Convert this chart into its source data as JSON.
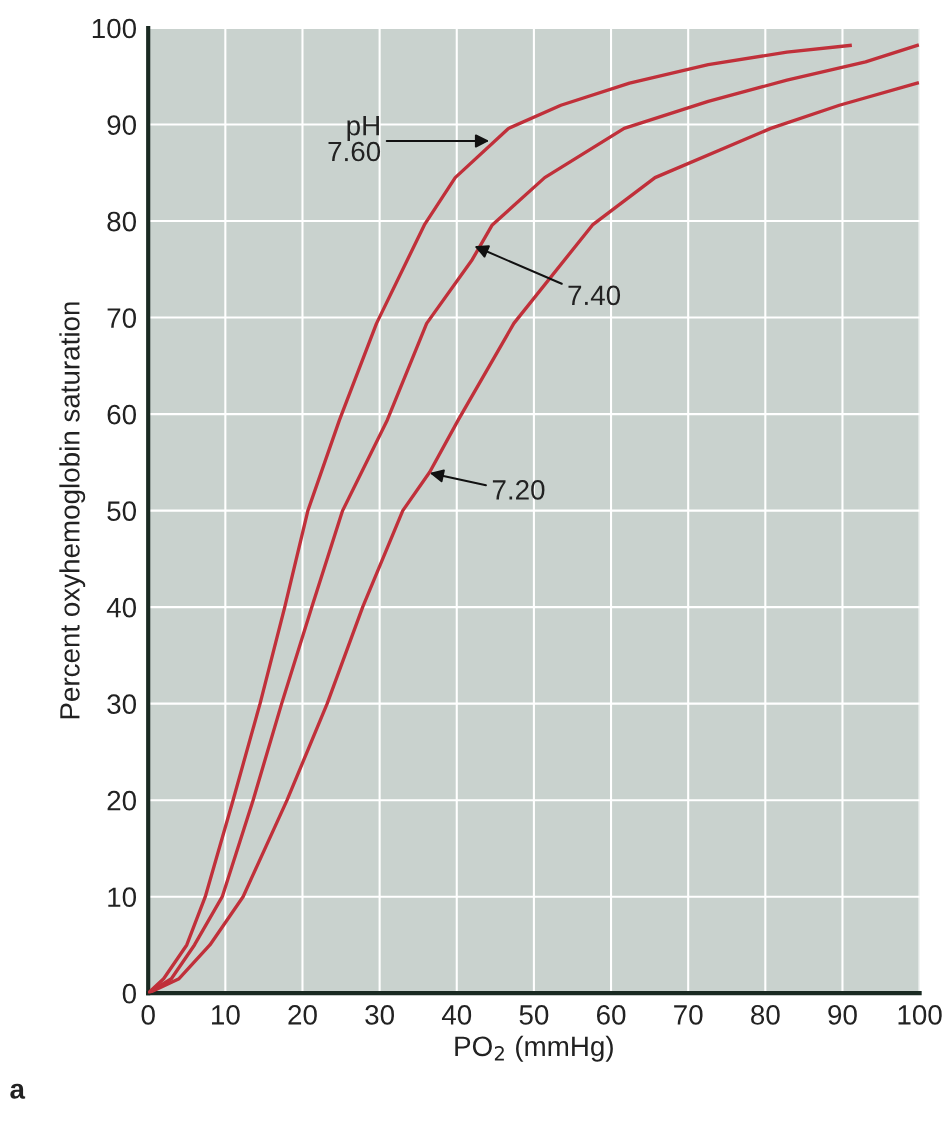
{
  "chart_data": {
    "type": "line",
    "xlabel": "PO$_{2}$ (mmHg)",
    "ylabel": "Percent oxyhemoglobin saturation",
    "xlim": [
      0,
      100
    ],
    "ylim": [
      0,
      100
    ],
    "xticks": [
      0,
      10,
      20,
      30,
      40,
      50,
      60,
      70,
      80,
      90,
      100
    ],
    "yticks": [
      0,
      10,
      20,
      30,
      40,
      50,
      60,
      70,
      80,
      90,
      100
    ],
    "grid": true,
    "line_style": "solid",
    "marker": "none",
    "series": [
      {
        "color": "#c0303a",
        "x": [
          0,
          2,
          5,
          7.4,
          11,
          14.5,
          17.7,
          20.7,
          24.8,
          29.6,
          35.8,
          39.8,
          46.7,
          53.5,
          62.4,
          72.6,
          82.8,
          91
        ],
        "values": [
          0,
          1.5,
          5,
          10,
          20,
          30,
          40,
          50,
          59.4,
          69.4,
          79.6,
          84.5,
          89.6,
          92,
          94.3,
          96.2,
          97.5,
          98.2
        ]
      },
      {
        "color": "#c0303a",
        "x": [
          0,
          3,
          6,
          9.6,
          13.6,
          17.3,
          21.2,
          25.2,
          31,
          36.1,
          42,
          44.6,
          51.4,
          61.7,
          72.6,
          82.8,
          93,
          99.7
        ],
        "values": [
          0,
          1.5,
          5,
          10,
          20,
          30,
          40,
          50,
          59.4,
          69.4,
          76,
          79.6,
          84.5,
          89.6,
          92.4,
          94.6,
          96.5,
          98.2
        ]
      },
      {
        "color": "#c0303a",
        "x": [
          0,
          4,
          8,
          12.3,
          18,
          23.2,
          27.8,
          33,
          36.5,
          40.2,
          47.4,
          57.6,
          65.7,
          80.7,
          89.6,
          99.7
        ],
        "values": [
          0,
          1.5,
          5,
          10,
          20,
          30,
          40,
          50,
          54,
          59.4,
          69.4,
          79.6,
          84.5,
          89.6,
          92,
          94.3
        ]
      }
    ],
    "annotations": [
      {
        "text": "pH\n7.60",
        "x": 44.2,
        "y": 88.3
      },
      {
        "text": "7.40",
        "x": 42.3,
        "y": 77.4
      },
      {
        "text": "7.20",
        "x": 36.5,
        "y": 53.9
      },
      "a"
    ]
  }
}
